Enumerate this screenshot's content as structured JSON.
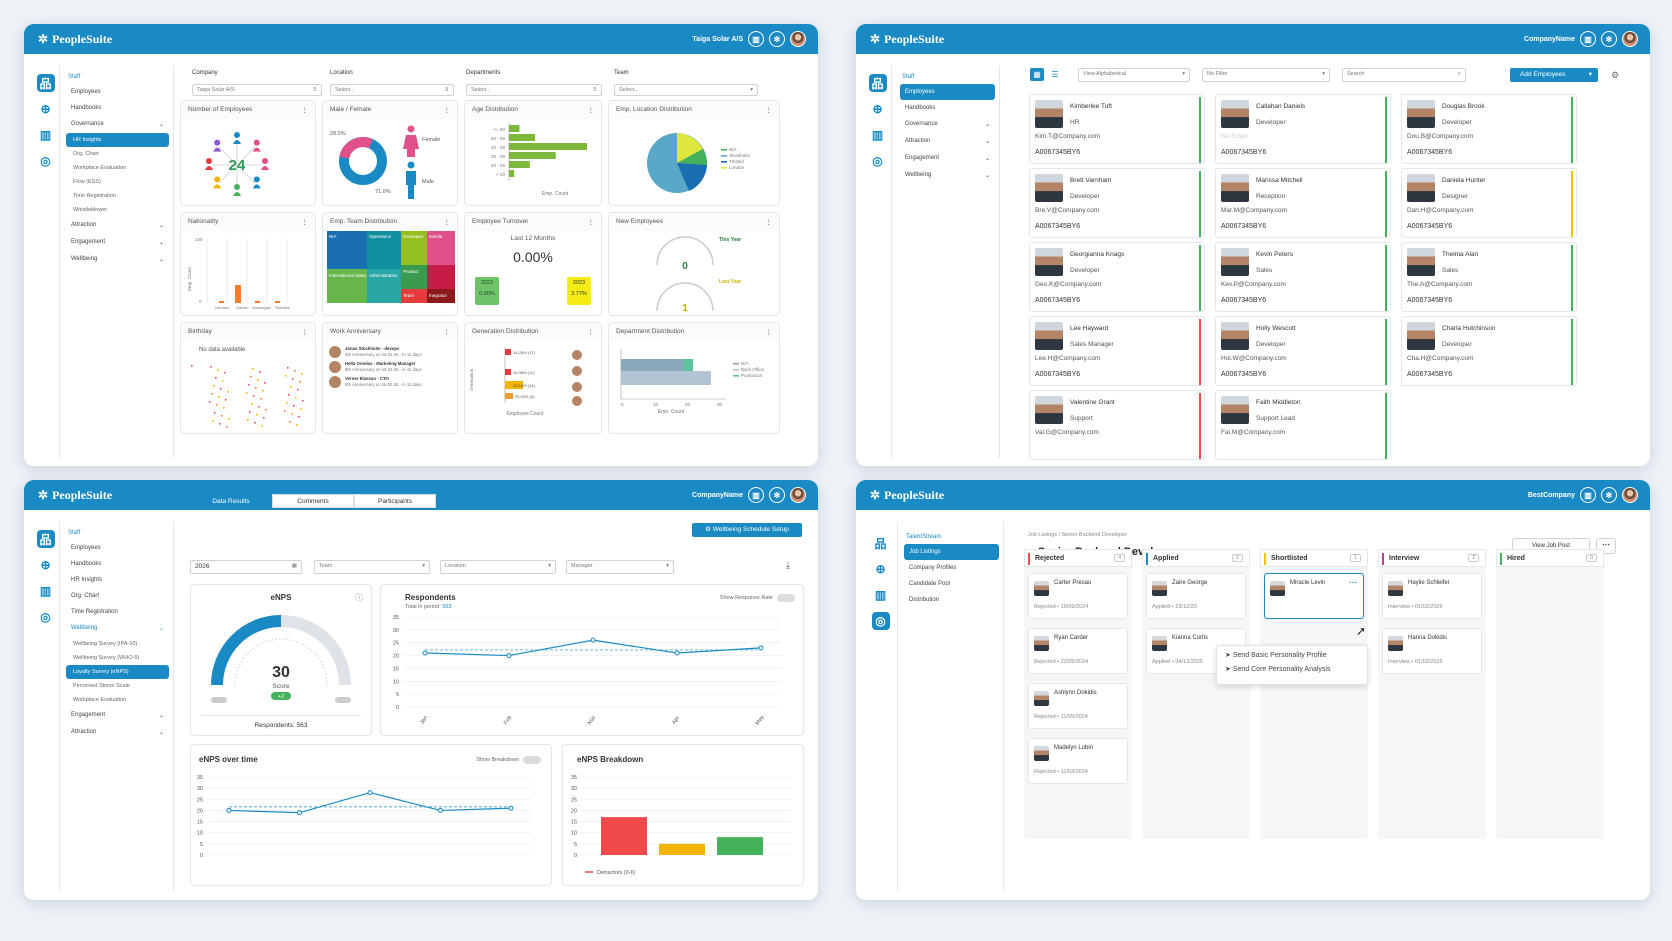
{
  "brand": "PeopleSuite",
  "colors": {
    "primary": "#1a8ac4",
    "green": "#44b25a",
    "red": "#f04a4a",
    "yellow": "#f2c200"
  },
  "w1": {
    "company": "Taiga Solar A/S",
    "nav": [
      "Staff",
      "Employees",
      "Handbooks",
      "Governance",
      "HR Insights",
      "Org. Chart",
      "Workplace Evaluation",
      "Flow (ESS)",
      "Time Registration",
      "Whistleblower",
      "Attraction",
      "Engagement",
      "Wellbeing"
    ],
    "filters": {
      "company_l": "Company",
      "company_v": "Taiga Solar A/S",
      "location_l": "Location",
      "location_v": "Select..",
      "departments_l": "Departments",
      "departments_v": "Select..",
      "team_l": "Team",
      "team_v": "Select.."
    },
    "cards": {
      "num_emp": "Number of Employees",
      "num_emp_v": "24",
      "male_female": "Male / Female",
      "female": "Female",
      "male": "Male",
      "female_pct": "29.0%",
      "male_pct": "71.0%",
      "age": "Age Distribution",
      "age_labels": [
        ">= 60",
        "50 - 59",
        "40 - 49",
        "30 - 39",
        "20 - 29",
        "< 20"
      ],
      "age_x": "Emp. Count",
      "age_y": "Age Group",
      "emp_loc": "Emp. Location Distribution",
      "loc_legend": [
        "N/A",
        "Stockholm",
        "Thisted",
        "London"
      ],
      "nationality": "Nationality",
      "nat_y": "Emp. Count",
      "nat_ticks": [
        "German",
        "Danish",
        "Norwegian",
        "Swedish"
      ],
      "nat_y_ticks": [
        "100",
        "50",
        "0"
      ],
      "team_dist": "Emp. Team Distribution",
      "tm": [
        "N/A",
        "Operations",
        "Developer",
        "Mobile",
        "International Sales",
        "Administration",
        "Product",
        "Team",
        "Inegrator"
      ],
      "turnover": "Employee Turnover",
      "last12": "Last 12 Months",
      "turnover_v": "0.00%",
      "y2022": "2022",
      "y2022v": "0.00%",
      "y2023": "2023",
      "y2023v": "3.77%",
      "new_emp": "New Employees",
      "this_year": "This Year",
      "this_year_v": "0",
      "last_year": "Last Year",
      "last_year_v": "1",
      "birthday": "Birthday",
      "no_data": "No data available",
      "anniv": "Work Anniversary",
      "anniv_items": [
        {
          "t": "Jonas Stockholm - devops",
          "s": "5th Anniversary on 16.02.26 - in 11 days"
        },
        {
          "t": "Hella Ornelas - Marketing Manager",
          "s": "5th Anniversary on 16.02.26 - in 11 days"
        },
        {
          "t": "Verner Elasson - CTO",
          "s": "5th Anniversary on 16.02.26 - in 11 days"
        }
      ],
      "gen": "Generation Distribution",
      "gen_x": "Employee Count",
      "gen_y": "Generation",
      "gen_vals": [
        "14.28% (17)",
        "",
        "15.38% (12)",
        "45.16% (14)",
        "25.00% (3)"
      ],
      "dept": "Department Distribution",
      "dept_x": "Emp. Count",
      "dept_legend": [
        "N/A",
        "Back Office",
        "Production"
      ],
      "dept_ticks": [
        "0",
        "10",
        "20",
        "30"
      ]
    }
  },
  "w2": {
    "company": "CompanyName",
    "view": "View Alphabetical",
    "filter": "No Filter",
    "search": "Search",
    "add": "Add Employees",
    "nav": [
      "Staff",
      "Employees",
      "Handbooks",
      "Governance",
      "Attraction",
      "Engagement",
      "Wellbeing"
    ],
    "employees": [
      {
        "name": "Kimberlee Tuft",
        "role": "HR",
        "email": "Kim.T@Company.com",
        "id": "A0067345BY6",
        "bar": "#44b25a"
      },
      {
        "name": "Callahan Daniels",
        "role": "Developer",
        "email": "No Email",
        "id": "A0067345BY6",
        "bar": "#44b25a"
      },
      {
        "name": "Douglas Brook",
        "role": "Developer",
        "email": "Dou.B@Company.com",
        "id": "A0067345BY6",
        "bar": "#44b25a"
      },
      {
        "name": "Brett Varnham",
        "role": "Developer",
        "email": "Bre.V@Company.com",
        "id": "A0067345BY6",
        "bar": "#44b25a"
      },
      {
        "name": "Marissa Mitchell",
        "role": "Reception",
        "email": "Mar.M@Company.com",
        "id": "A0067345BY6",
        "bar": "#44b25a"
      },
      {
        "name": "Daniela Hunter",
        "role": "Designer",
        "email": "Dan.H@Company.com",
        "id": "A0067345BY6",
        "bar": "#f2c200"
      },
      {
        "name": "Georgianna Knags",
        "role": "Developer",
        "email": "Geo.K@Company.com",
        "id": "A0067345BY6",
        "bar": "#44b25a"
      },
      {
        "name": "Kevin Peters",
        "role": "Sales",
        "email": "Kev.P@Company.com",
        "id": "A0067345BY6",
        "bar": "#44b25a"
      },
      {
        "name": "Thelma Alan",
        "role": "Sales",
        "email": "The.A@Company.com",
        "id": "A0067345BY6",
        "bar": "#44b25a"
      },
      {
        "name": "Lee Hayward",
        "role": "Sales Manager",
        "email": "Lee.H@Company.com",
        "id": "A0067345BY6",
        "bar": "#f04a4a"
      },
      {
        "name": "Holly Wescott",
        "role": "Developer",
        "email": "Hol.W@Company.com",
        "id": "A0067345BY6",
        "bar": "#44b25a"
      },
      {
        "name": "Charla Hutchinson",
        "role": "Developer",
        "email": "Cha.H@Company.com",
        "id": "A0067345BY6",
        "bar": "#44b25a"
      },
      {
        "name": "Valentine Grant",
        "role": "Support",
        "email": "Val.G@Company.com",
        "id": "",
        "bar": "#f04a4a"
      },
      {
        "name": "Faith Middleton",
        "role": "Support Lead",
        "email": "Fai.M@Company.com",
        "id": "",
        "bar": "#44b25a"
      }
    ]
  },
  "w3": {
    "company": "CompanyName",
    "tabs": [
      "Data Results",
      "Comments",
      "Participants"
    ],
    "schedule": "Wellbeing Schedule Setup",
    "nav": [
      "Staff",
      "Employees",
      "Handbooks",
      "HR Insights",
      "Org. Chart",
      "Time Registration",
      "Wellbeing",
      "Wellbeing Survey (IPA-10)",
      "Wellbeing Survey (WHO-5)",
      "Loyalty Survey (eNPS)",
      "Perceived Stress Scale",
      "Workplace Evaluation",
      "Engagement",
      "Attraction"
    ],
    "year": "2026",
    "team": "Team",
    "location": "Location",
    "manager": "Manager",
    "enps": "eNPS",
    "score": "30",
    "score_l": "Score",
    "delta": "+2",
    "respondents_l": "Respondents: 563",
    "respondents": "Respondents",
    "total": "Total in period:",
    "total_v": "563",
    "show_rate": "Show Response Rate",
    "over_time": "eNPS over time",
    "show_breakdown": "Show Breakdown",
    "breakdown": "eNPS Breakdown",
    "detractors": "Detractors (0-6)"
  },
  "w4": {
    "company": "BestCompany",
    "nav": [
      "TalentStream",
      "Job Listings",
      "Company Profiles",
      "Candidate Pool",
      "Distribution"
    ],
    "crumb": "Job Listings / Senior Backend Developer",
    "title": "Senior Backend Developer",
    "view": "View Job Post",
    "columns": [
      {
        "name": "Rejected",
        "count": "4",
        "color": "#f04a4a"
      },
      {
        "name": "Applied",
        "count": "2",
        "color": "#1a8ac4"
      },
      {
        "name": "Shortlisted",
        "count": "1",
        "color": "#f2c200"
      },
      {
        "name": "Interview",
        "count": "2",
        "color": "#c23a8f"
      },
      {
        "name": "Hired",
        "count": "0",
        "color": "#44b25a"
      }
    ],
    "cards": {
      "rejected": [
        {
          "n": "Carter Presau",
          "s": "Rejected • 16/09/2024"
        },
        {
          "n": "Ryan Carder",
          "s": "Rejected • 22/05/2024"
        },
        {
          "n": "Ashlynn Dokidis",
          "s": "Rejected • 11/05/2024"
        },
        {
          "n": "Madelyn Lubin",
          "s": "Rejected • 11/03/2024"
        }
      ],
      "applied": [
        {
          "n": "Zaire George",
          "s": "Applied • 23/12/20"
        },
        {
          "n": "Kianna Curtis",
          "s": "Applied • 04/12/2025"
        }
      ],
      "shortlisted": [
        {
          "n": "Miracle Levin",
          "s": ""
        }
      ],
      "interview": [
        {
          "n": "Haylie Schleifer",
          "s": "Interview • 01/02/2026"
        },
        {
          "n": "Hanna Dokidis",
          "s": "Interview • 01/02/2026"
        }
      ]
    },
    "menu": [
      "Send Basic Personality Profile",
      "Send Core Personality Analysis"
    ]
  },
  "chart_data": [
    {
      "type": "line",
      "title": "Respondents",
      "categories": [
        "Jan",
        "Feb",
        "Mar",
        "Apr",
        "May"
      ],
      "series": [
        {
          "values": [
            21,
            20,
            26,
            21,
            23
          ]
        }
      ],
      "ylim": [
        0,
        35
      ],
      "yticks": [
        0,
        5,
        10,
        15,
        20,
        25,
        30,
        35
      ]
    },
    {
      "type": "line",
      "title": "eNPS over time",
      "categories": [
        "Jan",
        "Feb",
        "Mar",
        "Apr",
        "May"
      ],
      "series": [
        {
          "values": [
            20,
            19,
            28,
            20,
            21
          ]
        }
      ],
      "ylim": [
        0,
        35
      ],
      "yticks": [
        0,
        5,
        10,
        15,
        20,
        25,
        30,
        35
      ]
    },
    {
      "type": "bar",
      "title": "eNPS Breakdown",
      "categories": [
        "Detractors (0-6)",
        "",
        ""
      ],
      "values": [
        17,
        5,
        8
      ],
      "colors": [
        "#f04a4a",
        "#f2b400",
        "#44b25a"
      ],
      "ylim": [
        0,
        35
      ],
      "yticks": [
        0,
        5,
        10,
        15,
        20,
        25,
        30,
        35
      ]
    },
    {
      "type": "bar",
      "title": "Age Distribution",
      "categories": [
        ">= 60",
        "50 - 59",
        "40 - 49",
        "30 - 39",
        "20 - 29",
        "< 20"
      ],
      "values": [
        2,
        5,
        15,
        9,
        4,
        1
      ]
    }
  ]
}
